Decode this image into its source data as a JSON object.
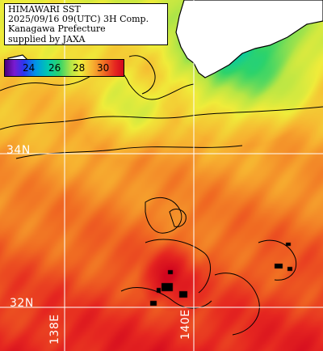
{
  "title": {
    "line1": "HIMAWARI SST",
    "line2": "2025/09/16 09(UTC) 3H Comp.",
    "line3": "Kanagawa Prefecture",
    "line4": "supplied by JAXA"
  },
  "colorbar": {
    "labels": [
      "24",
      "26",
      "28",
      "30"
    ],
    "min_c": 22.5,
    "max_c": 31.5
  },
  "grid": {
    "lat_labels": [
      "34N",
      "32N"
    ],
    "lon_labels": [
      "138E",
      "140E"
    ]
  },
  "colors": {
    "land": "#ffffff",
    "grid": "#ffffff",
    "coastline": "#000000",
    "cloud": "#000000"
  }
}
